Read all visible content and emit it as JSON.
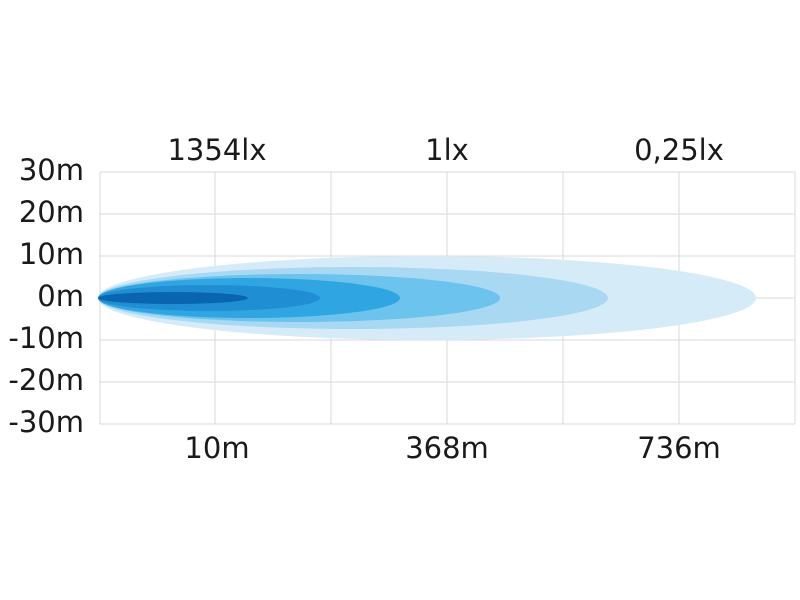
{
  "y_axis": {
    "labels": [
      "30m",
      "20m",
      "10m",
      "0m",
      "-10m",
      "-20m",
      "-30m"
    ]
  },
  "top_labels": [
    "1354lx",
    "1lx",
    "0,25lx"
  ],
  "bottom_labels": [
    "10m",
    "368m",
    "736m"
  ]
}
